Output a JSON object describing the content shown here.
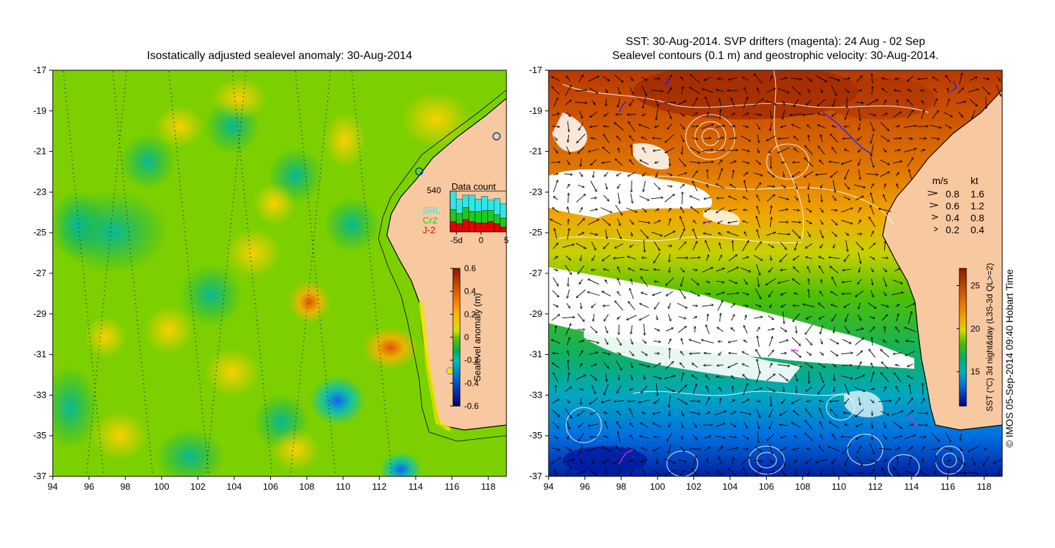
{
  "left_panel": {
    "title": "Isostatically adjusted sealevel anomaly: 30-Aug-2014",
    "x_ticks": [
      94,
      96,
      98,
      100,
      102,
      104,
      106,
      108,
      110,
      112,
      114,
      116,
      118
    ],
    "y_ticks": [
      -17,
      -19,
      -21,
      -23,
      -25,
      -27,
      -29,
      -31,
      -33,
      -35,
      -37
    ],
    "colorbar": {
      "label": "Sealevel anomaly (m)",
      "range": [
        -0.6,
        0.6
      ],
      "ticks": [
        "0.6",
        "0.4",
        "0.2",
        "0",
        "-0.2",
        "-0.4",
        "-0.6"
      ]
    },
    "data_count": {
      "title": "Data count",
      "max_label": "540",
      "legend": [
        {
          "name": "SRL",
          "color": "#33e6e6"
        },
        {
          "name": "Cr2",
          "color": "#1ec81e"
        },
        {
          "name": "J-2",
          "color": "#e60000"
        }
      ],
      "x_ticks": [
        "-5d",
        "0",
        "5"
      ],
      "bars": [
        {
          "srl": 0.45,
          "cr2": 0.3,
          "j2": 0.25
        },
        {
          "srl": 0.35,
          "cr2": 0.25,
          "j2": 0.2
        },
        {
          "srl": 0.3,
          "cr2": 0.3,
          "j2": 0.3
        },
        {
          "srl": 0.4,
          "cr2": 0.25,
          "j2": 0.25
        },
        {
          "srl": 0.3,
          "cr2": 0.28,
          "j2": 0.22
        },
        {
          "srl": 0.35,
          "cr2": 0.3,
          "j2": 0.22
        },
        {
          "srl": 0.25,
          "cr2": 0.28,
          "j2": 0.25
        },
        {
          "srl": 0.4,
          "cr2": 0.22,
          "j2": 0.2
        },
        {
          "srl": 0.35,
          "cr2": 0.22,
          "j2": 0.12
        }
      ]
    }
  },
  "right_panel": {
    "title_line1": "SST: 30-Aug-2014. SVP drifters (magenta): 24 Aug - 02 Sep",
    "title_line2": "Sealevel contours (0.1 m) and geostrophic velocity: 30-Aug-2014.",
    "x_ticks": [
      94,
      96,
      98,
      100,
      102,
      104,
      106,
      108,
      110,
      112,
      114,
      116,
      118
    ],
    "y_ticks": [
      -17,
      -19,
      -21,
      -23,
      -25,
      -27,
      -29,
      -31,
      -33,
      -35,
      -37
    ],
    "velocity_legend": {
      "header_ms": "m/s",
      "header_kt": "kt",
      "rows": [
        {
          "ms": "0.8",
          "kt": "1.6"
        },
        {
          "ms": "0.6",
          "kt": "1.2"
        },
        {
          "ms": "0.4",
          "kt": "0.8"
        },
        {
          "ms": "0.2",
          "kt": "0.4"
        }
      ]
    },
    "colorbar": {
      "label": "SST (°C) 3d night&day (L3S-3d QL>=2)",
      "range": [
        11,
        27
      ],
      "ticks": [
        "25",
        "20",
        "15"
      ]
    },
    "credit": "© IMOS 05-Sep-2014 09:40 Hobart Time"
  }
}
